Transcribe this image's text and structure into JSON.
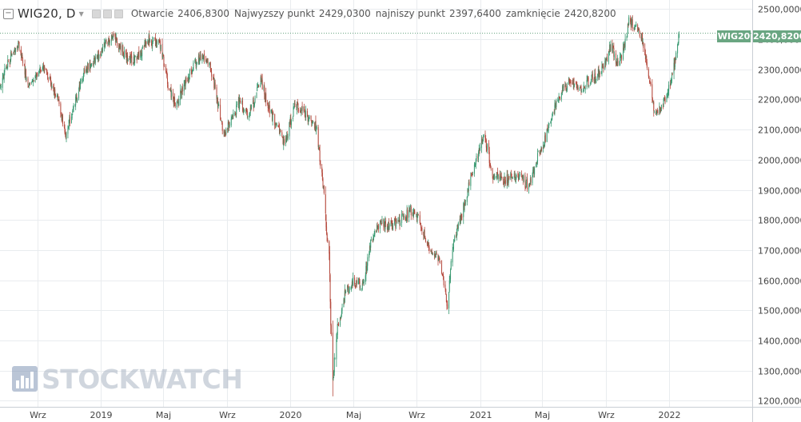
{
  "header": {
    "symbol": "WIG20, D",
    "open_label": "Otwarcie",
    "open_value": "2406,8300",
    "high_label": "Najwyzszy punkt",
    "high_value": "2429,0300",
    "low_label": "najniszy punkt",
    "low_value": "2397,6400",
    "close_label": "zamknięcie",
    "close_value": "2420,8200"
  },
  "price_tag": {
    "name": "WIG20",
    "value": "2420,8200"
  },
  "watermark": {
    "text": "STOCKWATCH"
  },
  "colors": {
    "up": "#3a9a72",
    "down": "#b64a3e",
    "grid": "#e9ecef",
    "axis_text": "#444444",
    "last_price": "#6aa682"
  },
  "chart_data": {
    "type": "candlestick",
    "title": "WIG20, D",
    "ylim": [
      1180,
      2530
    ],
    "y_ticks": [
      1200,
      1300,
      1400,
      1500,
      1600,
      1700,
      1800,
      1900,
      2000,
      2100,
      2200,
      2300,
      2400,
      2500
    ],
    "y_tick_labels": [
      "1200,0000",
      "1300,0000",
      "1400,0000",
      "1500,0000",
      "1600,0000",
      "1700,0000",
      "1800,0000",
      "1900,0000",
      "2000,0000",
      "2100,0000",
      "2200,0000",
      "2300,0000",
      "2400,0000",
      "2500,0000"
    ],
    "x_ticks": [
      "2018-09-01",
      "2019-01-01",
      "2019-05-01",
      "2019-09-01",
      "2020-01-01",
      "2020-05-01",
      "2020-09-01",
      "2021-01-01",
      "2021-05-01",
      "2021-09-01",
      "2022-01-01"
    ],
    "x_tick_labels": [
      "Wrz",
      "2019",
      "Maj",
      "Wrz",
      "2020",
      "Maj",
      "Wrz",
      "2021",
      "Maj",
      "Wrz",
      "2022"
    ],
    "x_range": [
      "2018-06-20",
      "2022-06-10"
    ],
    "last_price": 2420.82,
    "grid": true,
    "series": [
      {
        "path": [
          [
            "2018-06-20",
            2250
          ],
          [
            "2018-07-05",
            2320
          ],
          [
            "2018-07-25",
            2390
          ],
          [
            "2018-08-15",
            2240
          ],
          [
            "2018-09-10",
            2310
          ],
          [
            "2018-10-10",
            2200
          ],
          [
            "2018-10-25",
            2080
          ],
          [
            "2018-11-15",
            2210
          ],
          [
            "2018-12-01",
            2300
          ],
          [
            "2018-12-20",
            2330
          ],
          [
            "2019-01-10",
            2380
          ],
          [
            "2019-01-25",
            2410
          ],
          [
            "2019-02-15",
            2350
          ],
          [
            "2019-03-10",
            2330
          ],
          [
            "2019-04-01",
            2400
          ],
          [
            "2019-04-25",
            2380
          ],
          [
            "2019-05-10",
            2250
          ],
          [
            "2019-05-25",
            2170
          ],
          [
            "2019-06-10",
            2250
          ],
          [
            "2019-07-05",
            2330
          ],
          [
            "2019-07-25",
            2340
          ],
          [
            "2019-08-10",
            2230
          ],
          [
            "2019-08-25",
            2080
          ],
          [
            "2019-09-10",
            2130
          ],
          [
            "2019-09-25",
            2190
          ],
          [
            "2019-10-15",
            2150
          ],
          [
            "2019-11-05",
            2270
          ],
          [
            "2019-11-20",
            2170
          ],
          [
            "2019-12-05",
            2120
          ],
          [
            "2019-12-20",
            2050
          ],
          [
            "2020-01-10",
            2180
          ],
          [
            "2020-01-25",
            2170
          ],
          [
            "2020-02-10",
            2120
          ],
          [
            "2020-02-20",
            2110
          ],
          [
            "2020-03-05",
            1900
          ],
          [
            "2020-03-12",
            1740
          ],
          [
            "2020-03-16",
            1690
          ],
          [
            "2020-03-19",
            1460
          ],
          [
            "2020-03-23",
            1270
          ],
          [
            "2020-04-01",
            1440
          ],
          [
            "2020-04-15",
            1550
          ],
          [
            "2020-05-01",
            1600
          ],
          [
            "2020-05-20",
            1580
          ],
          [
            "2020-06-05",
            1730
          ],
          [
            "2020-06-20",
            1790
          ],
          [
            "2020-07-10",
            1780
          ],
          [
            "2020-08-01",
            1800
          ],
          [
            "2020-08-20",
            1830
          ],
          [
            "2020-09-05",
            1800
          ],
          [
            "2020-09-25",
            1700
          ],
          [
            "2020-10-15",
            1660
          ],
          [
            "2020-10-30",
            1520
          ],
          [
            "2020-11-10",
            1720
          ],
          [
            "2020-11-25",
            1810
          ],
          [
            "2020-12-15",
            1940
          ],
          [
            "2020-12-31",
            2040
          ],
          [
            "2021-01-10",
            2080
          ],
          [
            "2021-01-25",
            1950
          ],
          [
            "2021-02-15",
            1930
          ],
          [
            "2021-03-05",
            1950
          ],
          [
            "2021-03-25",
            1930
          ],
          [
            "2021-04-05",
            1910
          ],
          [
            "2021-04-20",
            2000
          ],
          [
            "2021-05-05",
            2060
          ],
          [
            "2021-05-20",
            2150
          ],
          [
            "2021-06-10",
            2240
          ],
          [
            "2021-06-25",
            2260
          ],
          [
            "2021-07-15",
            2240
          ],
          [
            "2021-08-05",
            2270
          ],
          [
            "2021-08-25",
            2300
          ],
          [
            "2021-09-10",
            2380
          ],
          [
            "2021-09-25",
            2310
          ],
          [
            "2021-10-05",
            2360
          ],
          [
            "2021-10-15",
            2460
          ],
          [
            "2021-10-30",
            2440
          ],
          [
            "2021-11-10",
            2400
          ],
          [
            "2021-11-25",
            2250
          ],
          [
            "2021-12-05",
            2140
          ],
          [
            "2021-12-20",
            2180
          ],
          [
            "2022-01-05",
            2270
          ],
          [
            "2022-01-13",
            2330
          ],
          [
            "2022-01-20",
            2420.82
          ]
        ]
      }
    ]
  }
}
